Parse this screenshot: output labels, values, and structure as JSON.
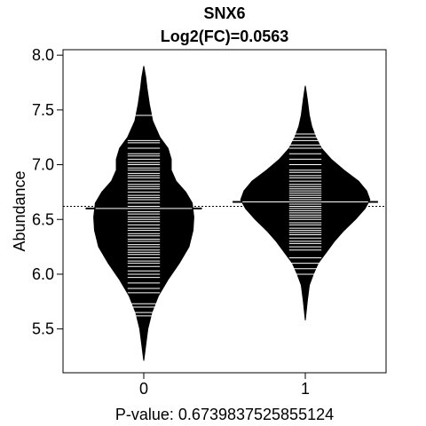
{
  "chart_data": {
    "type": "beanplot",
    "title": "SNX6",
    "subtitle": "Log2(FC)=0.0563",
    "ylabel": "Abundance",
    "xlabel": "P-value: 0.6739837525855124",
    "xlim": [
      -0.5,
      1.5
    ],
    "ylim": [
      5.1,
      8.05
    ],
    "y_ticks": [
      5.5,
      6.0,
      6.5,
      7.0,
      7.5,
      8.0
    ],
    "y_tick_labels": [
      "5.5",
      "6.0",
      "6.5",
      "7.0",
      "7.5",
      "8.0"
    ],
    "x_ticks": [
      0,
      1
    ],
    "x_tick_labels": [
      "0",
      "1"
    ],
    "overall_mean": 6.62,
    "groups": [
      {
        "category": "0",
        "mean": 6.6,
        "max_halfwidth": 0.31,
        "density_profile": [
          [
            5.21,
            0.0
          ],
          [
            5.35,
            0.012
          ],
          [
            5.5,
            0.025
          ],
          [
            5.65,
            0.05
          ],
          [
            5.8,
            0.09
          ],
          [
            5.95,
            0.15
          ],
          [
            6.1,
            0.22
          ],
          [
            6.25,
            0.28
          ],
          [
            6.4,
            0.305
          ],
          [
            6.52,
            0.31
          ],
          [
            6.65,
            0.3
          ],
          [
            6.75,
            0.26
          ],
          [
            6.85,
            0.2
          ],
          [
            6.95,
            0.17
          ],
          [
            7.05,
            0.17
          ],
          [
            7.15,
            0.15
          ],
          [
            7.25,
            0.1
          ],
          [
            7.4,
            0.055
          ],
          [
            7.55,
            0.035
          ],
          [
            7.7,
            0.02
          ],
          [
            7.8,
            0.012
          ],
          [
            7.9,
            0.0
          ]
        ],
        "points": [
          5.62,
          5.65,
          5.7,
          5.73,
          5.83,
          5.87,
          5.92,
          5.97,
          6.0,
          6.03,
          6.07,
          6.1,
          6.12,
          6.15,
          6.18,
          6.2,
          6.22,
          6.25,
          6.27,
          6.3,
          6.32,
          6.35,
          6.37,
          6.4,
          6.42,
          6.45,
          6.48,
          6.5,
          6.52,
          6.55,
          6.57,
          6.6,
          6.62,
          6.65,
          6.68,
          6.7,
          6.72,
          6.75,
          6.78,
          6.8,
          6.82,
          6.85,
          6.88,
          6.9,
          6.92,
          6.95,
          6.97,
          7.0,
          7.02,
          7.05,
          7.08,
          7.1,
          7.15,
          7.2,
          7.22,
          7.45
        ]
      },
      {
        "category": "1",
        "mean": 6.66,
        "max_halfwidth": 0.4,
        "density_profile": [
          [
            5.58,
            0.0
          ],
          [
            5.75,
            0.012
          ],
          [
            5.9,
            0.025
          ],
          [
            6.0,
            0.05
          ],
          [
            6.1,
            0.08
          ],
          [
            6.2,
            0.13
          ],
          [
            6.3,
            0.18
          ],
          [
            6.4,
            0.24
          ],
          [
            6.5,
            0.31
          ],
          [
            6.6,
            0.37
          ],
          [
            6.68,
            0.4
          ],
          [
            6.76,
            0.38
          ],
          [
            6.85,
            0.33
          ],
          [
            6.95,
            0.24
          ],
          [
            7.05,
            0.16
          ],
          [
            7.15,
            0.1
          ],
          [
            7.25,
            0.065
          ],
          [
            7.35,
            0.04
          ],
          [
            7.45,
            0.025
          ],
          [
            7.6,
            0.012
          ],
          [
            7.72,
            0.0
          ]
        ],
        "points": [
          6.0,
          6.05,
          6.1,
          6.15,
          6.22,
          6.25,
          6.28,
          6.3,
          6.33,
          6.36,
          6.38,
          6.4,
          6.42,
          6.45,
          6.47,
          6.5,
          6.52,
          6.54,
          6.56,
          6.58,
          6.6,
          6.62,
          6.64,
          6.66,
          6.68,
          6.7,
          6.72,
          6.74,
          6.76,
          6.78,
          6.8,
          6.82,
          6.85,
          6.88,
          6.9,
          6.93,
          6.95,
          7.0,
          7.05,
          7.1,
          7.15,
          7.18,
          7.22,
          7.25,
          7.28
        ]
      }
    ],
    "colors": {
      "bean": "#000000",
      "lines": "#ffffff",
      "axis": "#000000"
    }
  }
}
